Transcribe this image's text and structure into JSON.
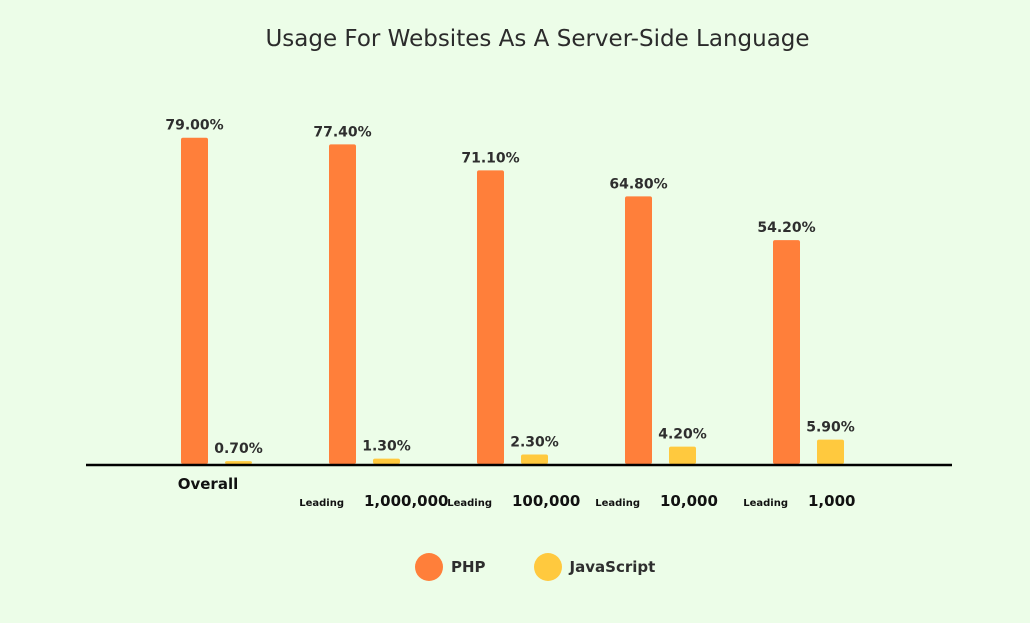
{
  "chart_data": {
    "type": "bar",
    "title": "Usage For Websites As A Server-Side Language",
    "categories": [
      {
        "prefix": "",
        "label": "Overall"
      },
      {
        "prefix": "Leading",
        "label": "1,000,000"
      },
      {
        "prefix": "Leading",
        "label": "100,000"
      },
      {
        "prefix": "Leading",
        "label": "10,000"
      },
      {
        "prefix": "Leading",
        "label": "1,000"
      }
    ],
    "series": [
      {
        "name": "PHP",
        "color": "#ff7f3a",
        "values": [
          79.0,
          77.4,
          71.1,
          64.8,
          54.2
        ],
        "labels": [
          "79.00%",
          "77.40%",
          "71.10%",
          "64.80%",
          "54.20%"
        ]
      },
      {
        "name": "JavaScript",
        "color": "#ffc93e",
        "values": [
          0.7,
          1.3,
          2.3,
          4.2,
          5.9
        ],
        "labels": [
          "0.70%",
          "1.30%",
          "2.30%",
          "4.20%",
          "5.90%"
        ]
      }
    ],
    "ylim": [
      0,
      100
    ],
    "grid": false,
    "legend": "bottom"
  }
}
